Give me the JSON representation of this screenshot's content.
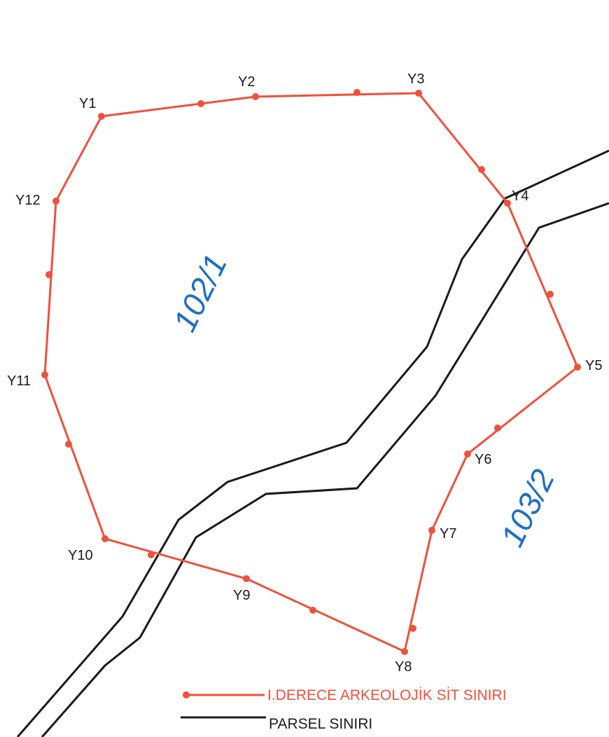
{
  "colors": {
    "site_boundary": "#f0503c",
    "parcel_boundary": "#1a1a1a",
    "parcel_label": "#1f6fc4",
    "point_label": "#1a1a1a"
  },
  "points": [
    {
      "id": "Y1"
    },
    {
      "id": "Y2"
    },
    {
      "id": "Y3"
    },
    {
      "id": "Y4"
    },
    {
      "id": "Y5"
    },
    {
      "id": "Y6"
    },
    {
      "id": "Y7"
    },
    {
      "id": "Y8"
    },
    {
      "id": "Y9"
    },
    {
      "id": "Y10"
    },
    {
      "id": "Y11"
    },
    {
      "id": "Y12"
    }
  ],
  "parcels": [
    {
      "label": "102/1"
    },
    {
      "label": "103/2"
    }
  ],
  "legend": {
    "site_boundary_label": "I.DERECE ARKEOLOJİK SİT SINIRI",
    "parcel_boundary_label": "PARSEL SINIRI"
  }
}
